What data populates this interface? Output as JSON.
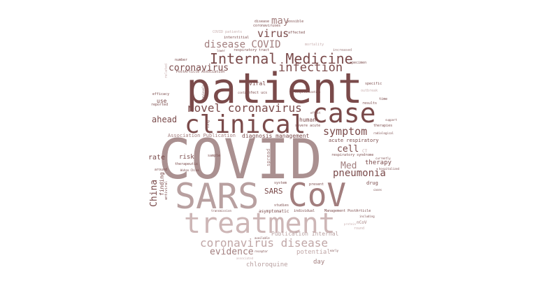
{
  "palette": {
    "dark": "#7a4a4a",
    "mid": "#a27e7e",
    "light": "#c8aeae",
    "pale": "#e2d2d2",
    "red": "#8b2a2a"
  },
  "words": {
    "patient": "patient",
    "covid": "COVID",
    "sars": "SARS",
    "cov": "CoV",
    "treatment": "treatment",
    "case": "case",
    "clinical": "clinical",
    "internal_medicine": "Internal Medicine",
    "infection": "infection",
    "novel_coronavirus": "novel coronavirus",
    "coronavirus_disease": "coronavirus disease",
    "disease_covid": "disease COVID",
    "coronavirus": "coronavirus",
    "virus": "virus",
    "symptom": "symptom",
    "pneumonia": "pneumonia",
    "med": "Med",
    "cell": "cell",
    "ahead": "ahead",
    "may": "may",
    "evidence": "evidence",
    "china": "China",
    "sars_small": "SARS",
    "therapy": "therapy",
    "chloroquine": "chloroquine",
    "potential": "potential",
    "publication_internal": "Publication Internal",
    "association_publication": "Association Publication",
    "diagnosis_management": "diagnosis management",
    "acute_respiratory": "acute respiratory",
    "risk": "risk",
    "rate": "rate",
    "day": "day",
    "human": "human",
    "viral": "viral",
    "drug": "drug",
    "use": "use",
    "spread": "spread",
    "finding": "finding",
    "asymptomatic": "asymptomatic",
    "lung": "lung",
    "severe_acute": "severe acute",
    "respiratory_syndrome": "respiratory syndrome",
    "efficacy": "efficacy",
    "reported": "reported",
    "possible": "possible",
    "studies": "studies",
    "individual": "individual",
    "management_postarticle": "Management PostArticle",
    "ncov": "nCoV",
    "hospitalized": "hospitalized",
    "respiratory_tract": "respiratory tract",
    "interstitial": "interstitial",
    "affected": "affected",
    "increased": "increased",
    "results": "results",
    "specimen": "specimen",
    "outbreak": "outbreak",
    "time": "time",
    "support": "support",
    "therapeutic": "therapeutic",
    "sample": "sample",
    "around": "around",
    "present": "present",
    "transmission": "transmission",
    "system": "system",
    "number": "number",
    "protein": "protein",
    "round": "round",
    "including": "including",
    "related": "related",
    "antiviral": "antiviral",
    "wuhan_china": "Wuhan China",
    "postarticle_association": "PostArticle Association",
    "covid_patients": "COVID patients",
    "coronaviruses": "coronaviruses",
    "mortality": "mortality",
    "infect_ucs": "infect ucs",
    "contact": "contact",
    "lower": "lower",
    "previously": "previously",
    "hospitalization": "hospitalization",
    "radiological": "radiological",
    "therapies": "therapies",
    "specific": "specific",
    "cases": "cases",
    "currently": "currently",
    "disease": "disease",
    "receptor": "receptor",
    "available": "available",
    "associated": "associated",
    "effect": "effect",
    "ct": "CT",
    "early": "early"
  }
}
